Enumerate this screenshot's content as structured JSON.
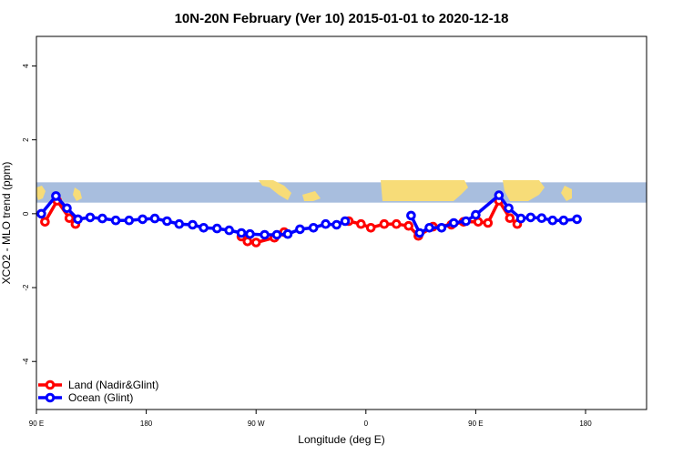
{
  "chart_data": {
    "type": "line",
    "title": "10N-20N February (Ver 10)   2015-01-01 to 2020-12-18",
    "xlabel": "Longitude (deg E)",
    "ylabel": "XCO2 - MLO trend (ppm)",
    "xlim": [
      90,
      590
    ],
    "ylim": [
      -5.3,
      4.8
    ],
    "x_ticks": [
      {
        "value": 90,
        "label": "90 E"
      },
      {
        "value": 180,
        "label": "180"
      },
      {
        "value": 270,
        "label": "90 W"
      },
      {
        "value": 360,
        "label": "0"
      },
      {
        "value": 450,
        "label": "90 E"
      },
      {
        "value": 540,
        "label": "180"
      }
    ],
    "y_ticks": [
      {
        "value": -4,
        "label": "-4"
      },
      {
        "value": -2,
        "label": "-2"
      },
      {
        "value": 0,
        "label": "0"
      },
      {
        "value": 2,
        "label": "2"
      },
      {
        "value": 4,
        "label": "4"
      }
    ],
    "map_band": {
      "y_bottom": 0.3,
      "y_top": 0.85,
      "ocean_color": "#a8bede",
      "land_color": "#f7dc78"
    },
    "legend": {
      "position": "bottom-left"
    },
    "series": [
      {
        "name": "Land (Nadir&Glint)",
        "color": "#ff0000",
        "segments": [
          [
            [
              97,
              -0.22
            ],
            [
              107,
              0.35
            ],
            [
              117,
              -0.12
            ],
            [
              122,
              -0.28
            ]
          ],
          [
            [
              258,
              -0.62
            ],
            [
              263,
              -0.75
            ],
            [
              270,
              -0.78
            ],
            [
              285,
              -0.65
            ],
            [
              293,
              -0.5
            ]
          ],
          [
            [
              346,
              -0.2
            ],
            [
              356,
              -0.28
            ],
            [
              364,
              -0.38
            ],
            [
              375,
              -0.28
            ],
            [
              385,
              -0.28
            ],
            [
              395,
              -0.33
            ],
            [
              403,
              -0.6
            ],
            [
              415,
              -0.35
            ],
            [
              430,
              -0.3
            ],
            [
              440,
              -0.22
            ],
            [
              452,
              -0.22
            ],
            [
              460,
              -0.25
            ],
            [
              469,
              0.35
            ],
            [
              478,
              -0.12
            ],
            [
              484,
              -0.28
            ]
          ]
        ]
      },
      {
        "name": "Ocean (Glint)",
        "color": "#0000ff",
        "segments": [
          [
            [
              94,
              0.0
            ],
            [
              106,
              0.48
            ],
            [
              115,
              0.15
            ],
            [
              124,
              -0.15
            ],
            [
              134,
              -0.1
            ],
            [
              144,
              -0.13
            ],
            [
              155,
              -0.18
            ],
            [
              166,
              -0.18
            ],
            [
              177,
              -0.15
            ],
            [
              187,
              -0.13
            ],
            [
              197,
              -0.2
            ],
            [
              207,
              -0.28
            ],
            [
              218,
              -0.3
            ],
            [
              227,
              -0.38
            ],
            [
              238,
              -0.4
            ],
            [
              248,
              -0.45
            ],
            [
              258,
              -0.52
            ],
            [
              265,
              -0.55
            ],
            [
              277,
              -0.57
            ],
            [
              287,
              -0.57
            ],
            [
              296,
              -0.55
            ],
            [
              306,
              -0.42
            ],
            [
              317,
              -0.38
            ],
            [
              327,
              -0.28
            ],
            [
              336,
              -0.3
            ],
            [
              343,
              -0.2
            ]
          ],
          [
            [
              397,
              -0.05
            ],
            [
              404,
              -0.52
            ],
            [
              412,
              -0.38
            ],
            [
              422,
              -0.38
            ],
            [
              432,
              -0.25
            ],
            [
              442,
              -0.2
            ],
            [
              450,
              -0.03
            ],
            [
              469,
              0.5
            ],
            [
              477,
              0.15
            ],
            [
              487,
              -0.13
            ],
            [
              495,
              -0.1
            ],
            [
              504,
              -0.12
            ],
            [
              513,
              -0.18
            ],
            [
              522,
              -0.18
            ],
            [
              533,
              -0.15
            ]
          ]
        ]
      }
    ]
  }
}
